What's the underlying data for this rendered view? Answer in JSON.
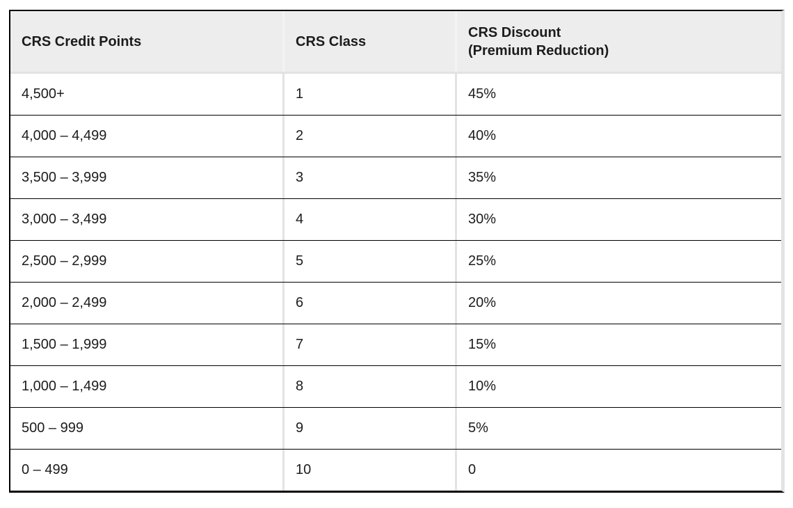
{
  "table": {
    "columns": [
      {
        "label": "CRS Credit Points"
      },
      {
        "label": "CRS Class"
      },
      {
        "label_line1": "CRS Discount",
        "label_line2": "(Premium Reduction)"
      }
    ],
    "rows": [
      {
        "points": "4,500+",
        "class": "1",
        "discount": "45%"
      },
      {
        "points": "4,000 – 4,499",
        "class": "2",
        "discount": "40%"
      },
      {
        "points": "3,500 – 3,999",
        "class": "3",
        "discount": "35%"
      },
      {
        "points": "3,000 – 3,499",
        "class": "4",
        "discount": "30%"
      },
      {
        "points": "2,500 – 2,999",
        "class": "5",
        "discount": "25%"
      },
      {
        "points": "2,000 – 2,499",
        "class": "6",
        "discount": "20%"
      },
      {
        "points": "1,500 – 1,999",
        "class": "7",
        "discount": "15%"
      },
      {
        "points": "1,000 – 1,499",
        "class": "8",
        "discount": "10%"
      },
      {
        "points": "500 – 999",
        "class": "9",
        "discount": "5%"
      },
      {
        "points": "0 – 499",
        "class": "10",
        "discount": "0"
      }
    ],
    "colors": {
      "header_background": "#ededed",
      "row_border": "#000000",
      "column_separator": "#e3e3e3",
      "text": "#1c1c1c"
    }
  }
}
